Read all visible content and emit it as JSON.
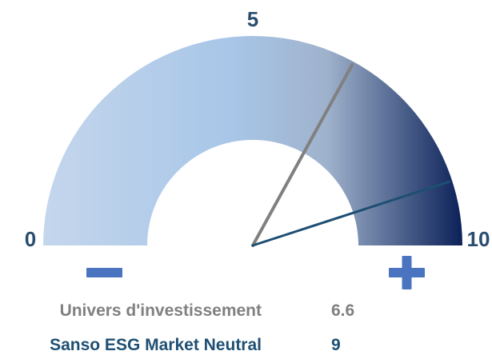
{
  "chart_data": {
    "type": "gauge",
    "range": [
      0,
      10
    ],
    "tick_labels": [
      "0",
      "5",
      "10"
    ],
    "low_symbol": "minus",
    "high_symbol": "plus",
    "series": [
      {
        "name": "Univers d'investissement",
        "value": 6.6,
        "value_label": "6.6",
        "color": "#808080"
      },
      {
        "name": "Sanso ESG Market Neutral",
        "value": 9,
        "value_label": "9",
        "color": "#1e4f73"
      }
    ]
  },
  "colors": {
    "arc_light": "#c4d6ec",
    "arc_mid": "#a8c6e8",
    "arc_dark": "#0e235a",
    "tick_text": "#2a4d6e",
    "symbols": "#4a74bf"
  }
}
